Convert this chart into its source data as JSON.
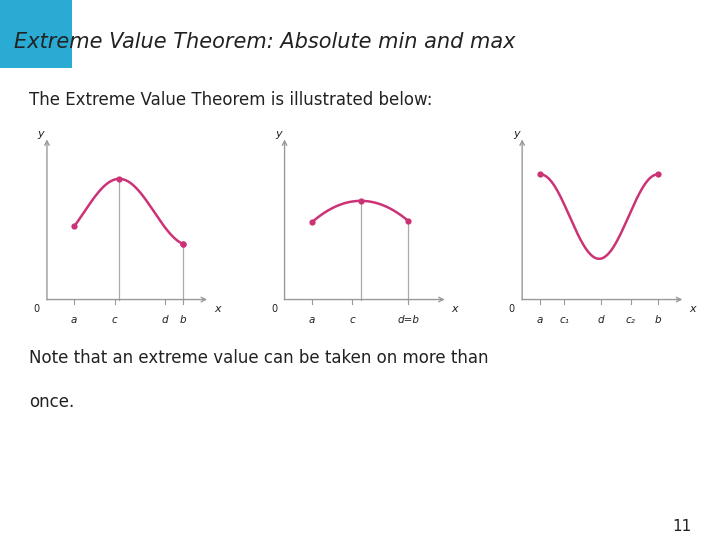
{
  "title": "Extreme Value Theorem: Absolute min and max",
  "subtitle": "The Extreme Value Theorem is illustrated below:",
  "note1": "Note that an extreme value can be taken on more than",
  "note2": "once.",
  "page_number": "11",
  "title_bg_color": "#F5EECF",
  "title_accent_color": "#29ABD4",
  "curve_color": "#CC3377",
  "axis_color": "#999999",
  "vert_line_color": "#AAAAAA",
  "text_color": "#222222",
  "bg_color": "#FFFFFF",
  "title_fontsize": 15,
  "body_fontsize": 12,
  "note_fontsize": 12
}
